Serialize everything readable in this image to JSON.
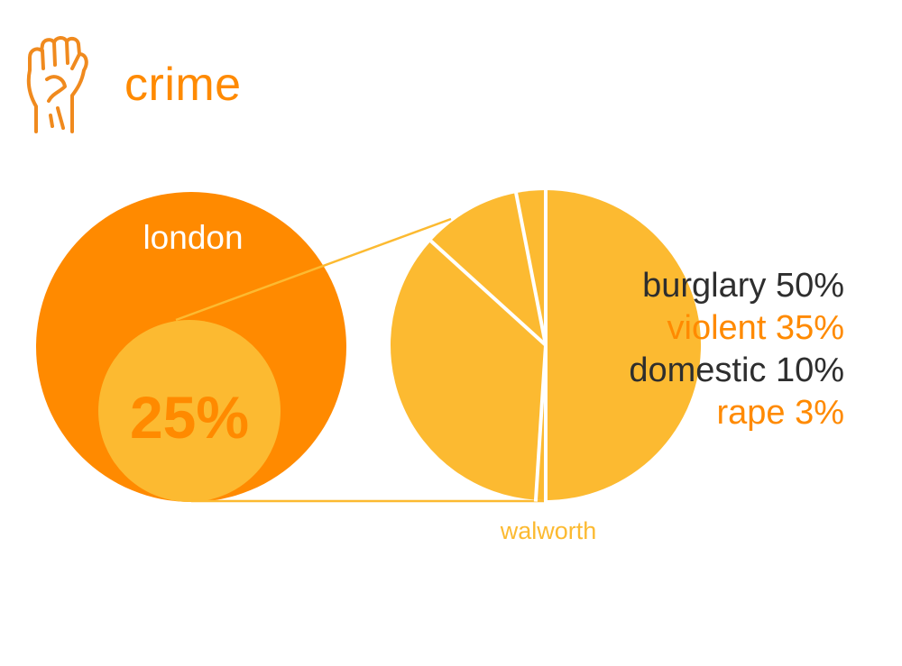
{
  "title": "crime",
  "colors": {
    "london": "#FF8A00",
    "walworth": "#FCBA31",
    "accent_text": "#FF8A00",
    "dark_text": "#2E2E2E",
    "walworth_label": "#FCBA31",
    "logo": "#F08A1E",
    "white": "#FFFFFF"
  },
  "icon": "raised-fist-icon",
  "chart_data": [
    {
      "type": "venn",
      "outer_label": "london",
      "inner_share_label": "25%",
      "inner_share": 0.25
    },
    {
      "type": "pie",
      "label": "walworth",
      "categories": [
        "burglary",
        "violent",
        "domestic",
        "rape"
      ],
      "values": [
        50,
        35,
        10,
        3
      ],
      "legend": [
        {
          "text": "burglary 50%",
          "color": "#2E2E2E"
        },
        {
          "text": "violent 35%",
          "color": "#FF8A00"
        },
        {
          "text": "domestic 10%",
          "color": "#2E2E2E"
        },
        {
          "text": "rape 3%",
          "color": "#FF8A00"
        }
      ],
      "legend_placement": "right"
    }
  ]
}
